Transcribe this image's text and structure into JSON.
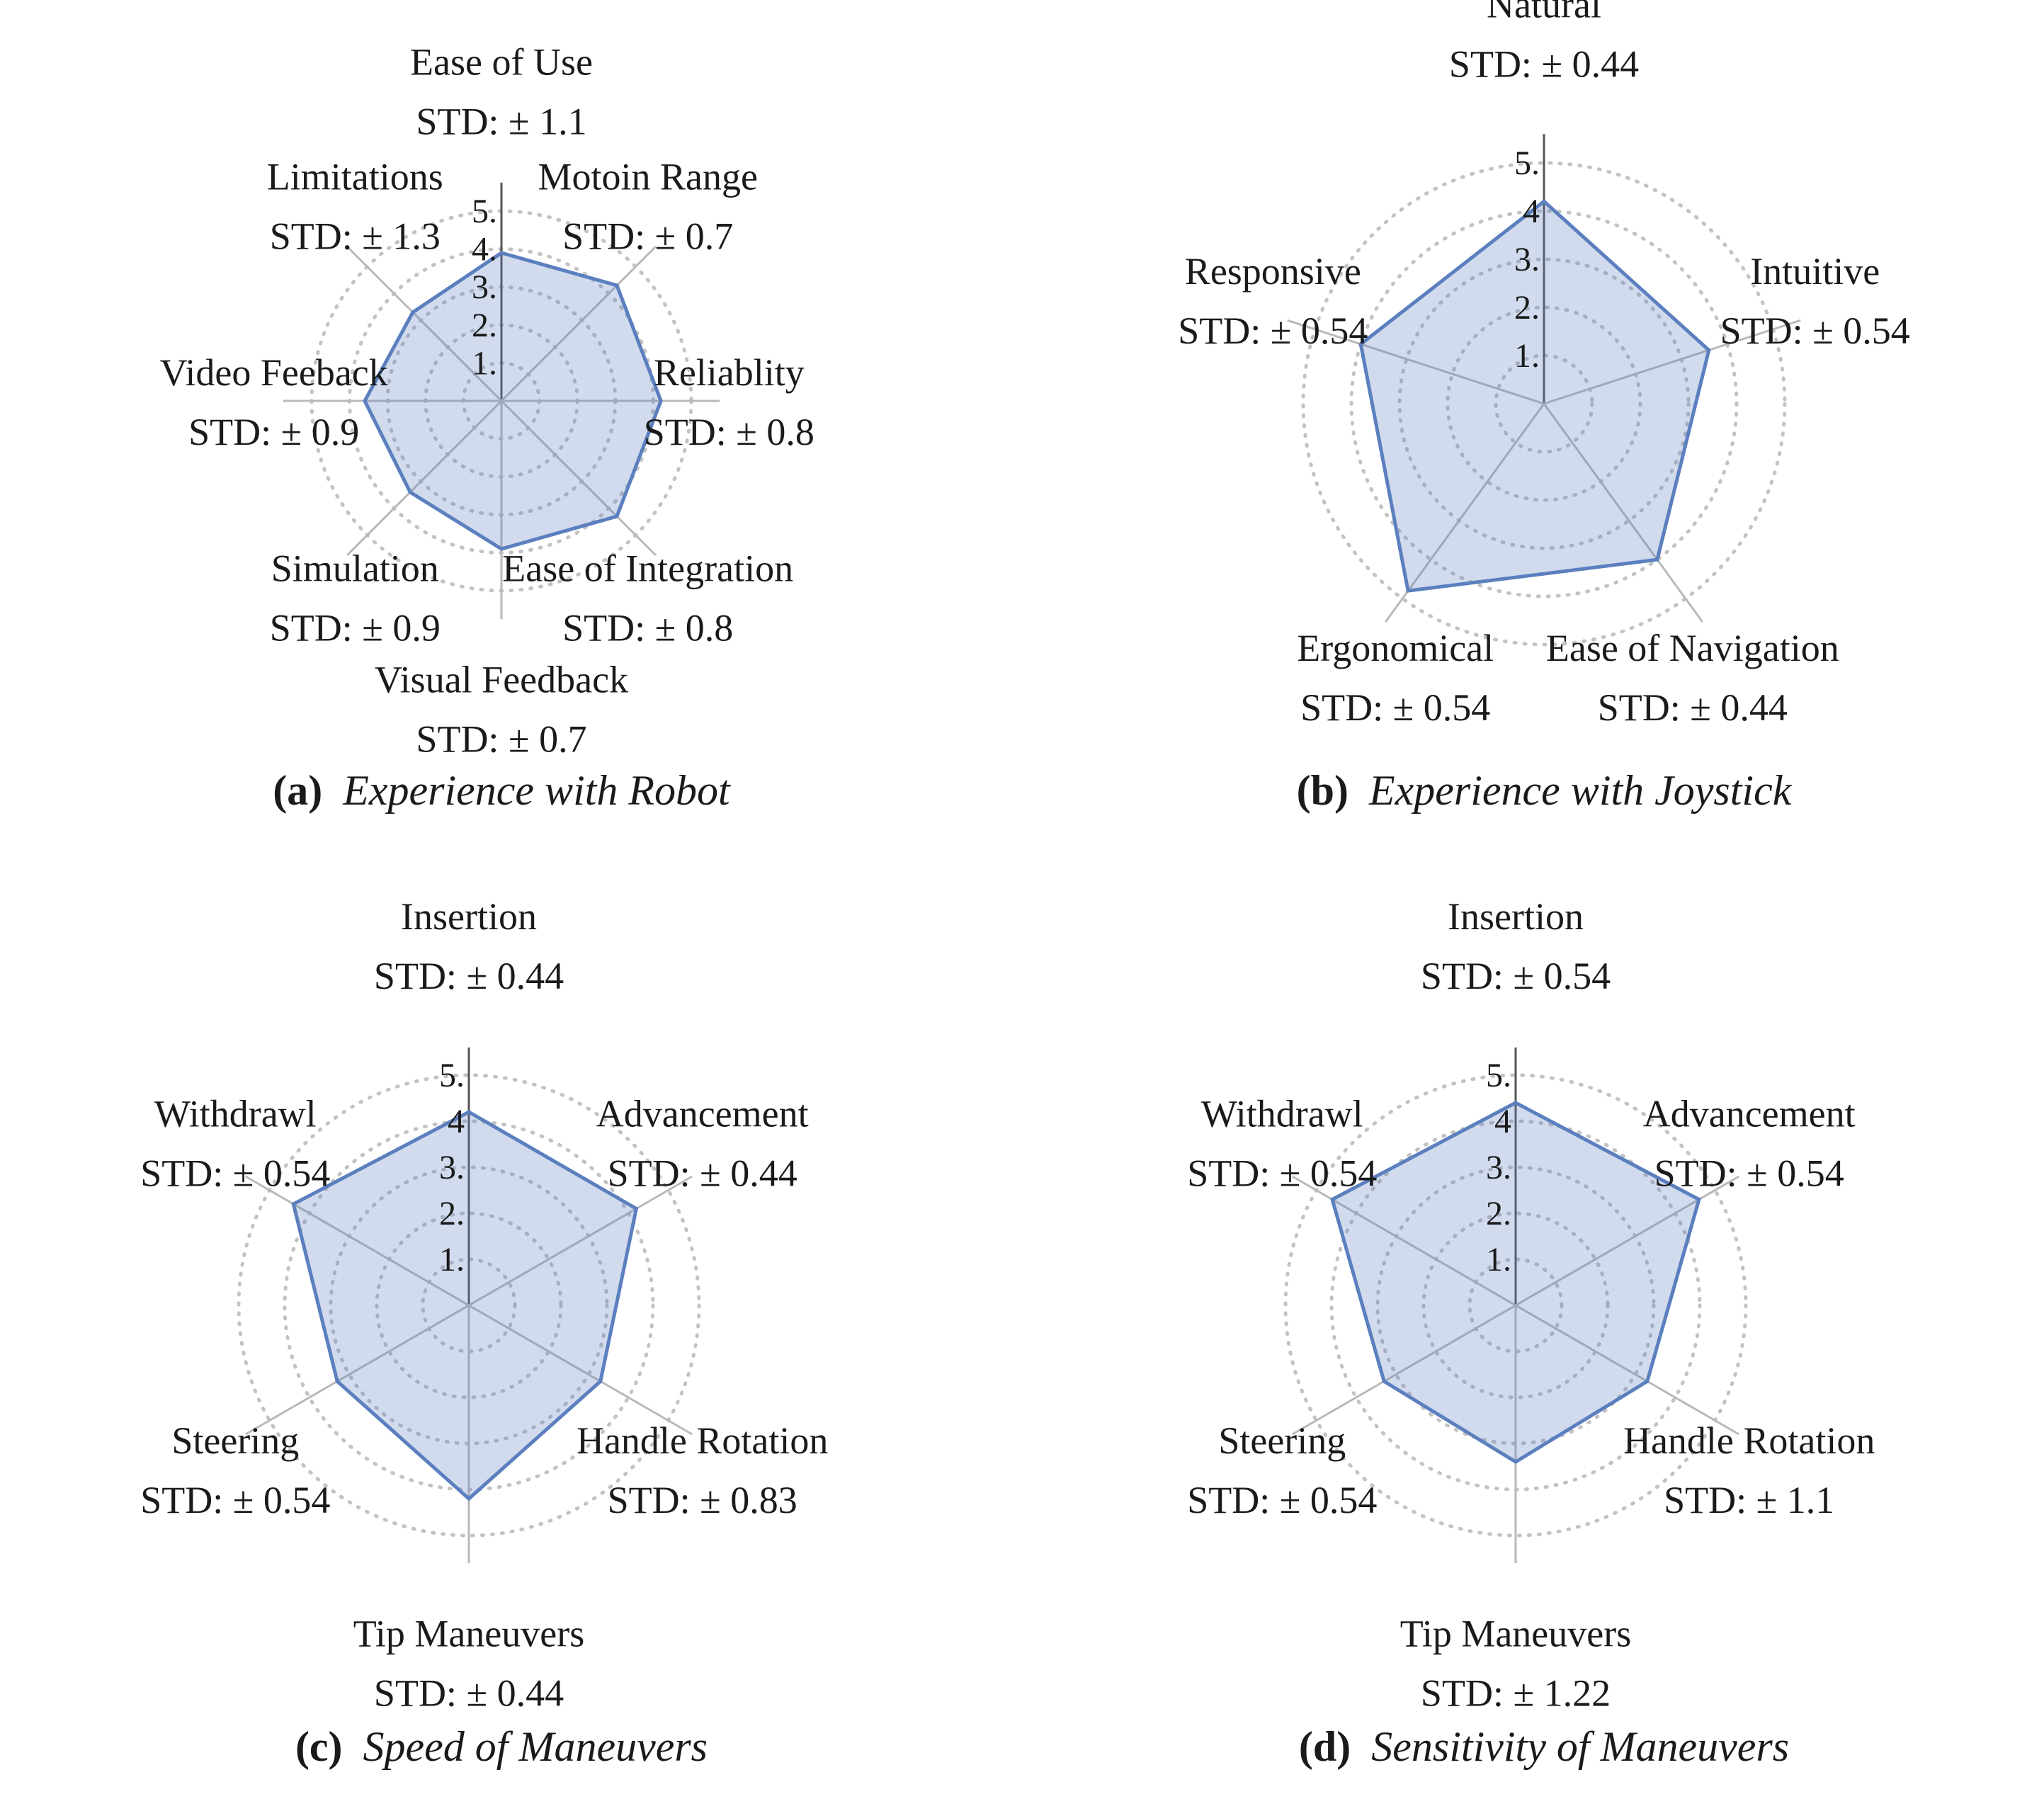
{
  "colors": {
    "series_line": "#5b7fbf",
    "series_fill": "#5b7fbf",
    "axis": "#b9b9b9",
    "up_axis": "#555555",
    "grid": "#c3c3c3",
    "text": "#1a1a1a"
  },
  "chart_data": [
    {
      "id": "a",
      "type": "radar",
      "caption_letter": "(a)",
      "caption_title": "Experience with Robot",
      "rmax": 5,
      "tick_labels": [
        "1.",
        "2.",
        "3.",
        "4.",
        "5."
      ],
      "axes": [
        {
          "name": "Ease of Use",
          "std": "STD: ± 1.1",
          "value": 3.9
        },
        {
          "name": "Motoin Range",
          "std": "STD: ± 0.7",
          "value": 4.3
        },
        {
          "name": "Reliablity",
          "std": "STD: ± 0.8",
          "value": 4.2
        },
        {
          "name": "Ease of Integration",
          "std": "STD: ± 0.8",
          "value": 4.3
        },
        {
          "name": "Visual Feedback",
          "std": "STD: ± 0.7",
          "value": 3.9
        },
        {
          "name": "Simulation",
          "std": "STD: ± 0.9",
          "value": 3.4
        },
        {
          "name": "Video Feeback",
          "std": "STD: ± 0.9",
          "value": 3.6
        },
        {
          "name": "Limitations",
          "std": "STD: ± 1.3",
          "value": 3.3
        }
      ]
    },
    {
      "id": "b",
      "type": "radar",
      "caption_letter": "(b)",
      "caption_title": "Experience with Joystick",
      "rmax": 5,
      "tick_labels": [
        "1.",
        "2.",
        "3.",
        "4",
        "5."
      ],
      "axes": [
        {
          "name": "Natural",
          "std": "STD: ± 0.44",
          "value": 4.2
        },
        {
          "name": "Intuitive",
          "std": "STD: ± 0.54",
          "value": 3.6
        },
        {
          "name": "Ease of Navigation",
          "std": "STD: ± 0.44",
          "value": 4.0
        },
        {
          "name": "Ergonomical",
          "std": "STD: ± 0.54",
          "value": 4.8
        },
        {
          "name": "Responsive",
          "std": "STD: ± 0.54",
          "value": 4.0
        }
      ]
    },
    {
      "id": "c",
      "type": "radar",
      "caption_letter": "(c)",
      "caption_title": "Speed of Maneuvers",
      "rmax": 5,
      "tick_labels": [
        "1.",
        "2.",
        "3.",
        "4",
        "5."
      ],
      "axes": [
        {
          "name": "Insertion",
          "std": "STD: ± 0.44",
          "value": 4.2
        },
        {
          "name": "Advancement",
          "std": "STD: ± 0.44",
          "value": 4.2
        },
        {
          "name": "Handle Rotation",
          "std": "STD: ± 0.83",
          "value": 3.3
        },
        {
          "name": "Tip Maneuvers",
          "std": "STD: ± 0.44",
          "value": 4.2
        },
        {
          "name": "Steering",
          "std": "STD: ± 0.54",
          "value": 3.3
        },
        {
          "name": "Withdrawl",
          "std": "STD: ± 0.54",
          "value": 4.4
        }
      ]
    },
    {
      "id": "d",
      "type": "radar",
      "caption_letter": "(d)",
      "caption_title": "Sensitivity of Maneuvers",
      "rmax": 5,
      "tick_labels": [
        "1.",
        "2.",
        "3.",
        "4",
        "5."
      ],
      "axes": [
        {
          "name": "Insertion",
          "std": "STD: ± 0.54",
          "value": 4.4
        },
        {
          "name": "Advancement",
          "std": "STD: ± 0.54",
          "value": 4.6
        },
        {
          "name": "Handle Rotation",
          "std": "STD: ± 1.1",
          "value": 3.3
        },
        {
          "name": "Tip Maneuvers",
          "std": "STD: ± 1.22",
          "value": 3.4
        },
        {
          "name": "Steering",
          "std": "STD: ± 0.54",
          "value": 3.3
        },
        {
          "name": "Withdrawl",
          "std": "STD: ± 0.54",
          "value": 4.6
        }
      ]
    }
  ]
}
